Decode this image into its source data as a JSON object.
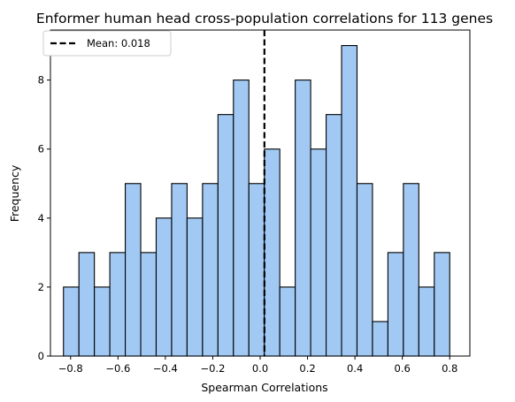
{
  "chart_data": {
    "type": "bar",
    "title": "Enformer human head cross-population correlations for 113 genes",
    "xlabel": "Spearman Correlations",
    "ylabel": "Frequency",
    "xlim": [
      -0.885,
      0.885
    ],
    "ylim": [
      0,
      9.45
    ],
    "xticks": [
      -0.8,
      -0.6,
      -0.4,
      -0.2,
      0.0,
      0.2,
      0.4,
      0.6,
      0.8
    ],
    "xtick_labels": [
      "−0.8",
      "−0.6",
      "−0.4",
      "−0.2",
      "0.0",
      "0.2",
      "0.4",
      "0.6",
      "0.8"
    ],
    "yticks": [
      0,
      2,
      4,
      6,
      8
    ],
    "ytick_labels": [
      "0",
      "2",
      "4",
      "6",
      "8"
    ],
    "bin_start": -0.83,
    "bin_width": 0.0652,
    "counts": [
      2,
      3,
      2,
      3,
      5,
      3,
      4,
      5,
      4,
      5,
      7,
      8,
      5,
      6,
      2,
      8,
      6,
      7,
      9,
      5,
      1,
      3,
      5,
      2,
      3
    ],
    "bar_color": "#a1c9f4",
    "edge_color": "#000000",
    "mean_line": {
      "x": 0.018,
      "label": "Mean: 0.018",
      "color": "#000000",
      "style": "dashed"
    },
    "legend_position": "upper-left",
    "grid": false
  }
}
